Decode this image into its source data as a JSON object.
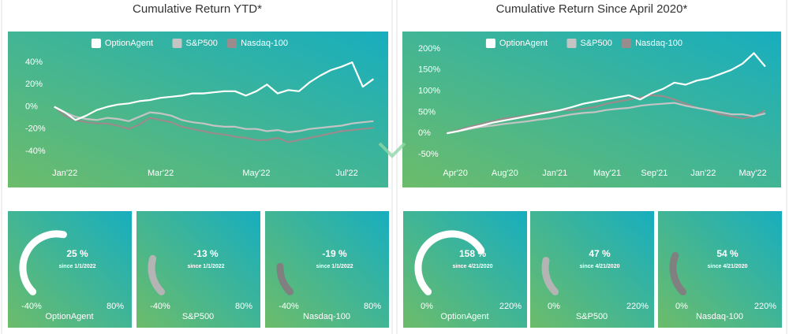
{
  "chart_data": [
    {
      "type": "line",
      "title": "Cumulative Return YTD*",
      "legend": "top",
      "grid": false,
      "x": [
        0,
        1,
        2,
        3,
        4,
        5,
        6,
        7,
        8,
        9,
        10,
        11,
        12,
        13,
        14,
        15,
        16,
        17,
        18,
        19,
        20,
        21,
        22,
        23,
        24,
        25,
        26,
        27,
        28,
        29,
        30
      ],
      "xlim": [
        -0.5,
        30.5
      ],
      "xticks": [
        {
          "value": 1,
          "label": "Jan'22"
        },
        {
          "value": 10,
          "label": "Mar'22"
        },
        {
          "value": 19,
          "label": "May'22"
        },
        {
          "value": 27.5,
          "label": "Jul'22"
        }
      ],
      "ylim": [
        -50,
        50
      ],
      "yticks": [
        {
          "value": 40,
          "label": "40%"
        },
        {
          "value": 20,
          "label": "20%"
        },
        {
          "value": 0,
          "label": "0%"
        },
        {
          "value": -20,
          "label": "-20%"
        },
        {
          "value": -40,
          "label": "-40%"
        }
      ],
      "series": [
        {
          "name": "OptionAgent",
          "color": "#ffffff",
          "values": [
            0,
            -5,
            -12,
            -8,
            -3,
            0,
            2,
            3,
            5,
            6,
            8,
            9,
            10,
            12,
            12,
            13,
            14,
            14,
            10,
            14,
            20,
            12,
            15,
            14,
            22,
            28,
            33,
            36,
            40,
            18,
            25
          ]
        },
        {
          "name": "S&P500",
          "color": "#c4c4c4",
          "values": [
            0,
            -5,
            -9,
            -11,
            -12,
            -10,
            -11,
            -13,
            -9,
            -5,
            -6,
            -8,
            -12,
            -14,
            -15,
            -17,
            -18,
            -18,
            -20,
            -20,
            -22,
            -21,
            -23,
            -22,
            -20,
            -19,
            -18,
            -17,
            -15,
            -14,
            -13
          ]
        },
        {
          "name": "Nasdaq-100",
          "color": "#9a8c8c",
          "values": [
            0,
            -8,
            -12,
            -14,
            -15,
            -15,
            -17,
            -20,
            -16,
            -10,
            -12,
            -14,
            -18,
            -20,
            -22,
            -24,
            -25,
            -27,
            -28,
            -30,
            -30,
            -28,
            -32,
            -30,
            -28,
            -26,
            -24,
            -22,
            -21,
            -20,
            -19
          ]
        }
      ]
    },
    {
      "type": "line",
      "title": "Cumulative Return Since April 2020*",
      "legend": "top",
      "grid": false,
      "x": [
        0,
        1,
        2,
        3,
        4,
        5,
        6,
        7,
        8,
        9,
        10,
        11,
        12,
        13,
        14,
        15,
        16,
        17,
        18,
        19,
        20,
        21,
        22,
        23,
        24,
        25,
        26,
        27,
        28
      ],
      "xlim": [
        -0.3,
        28.7
      ],
      "xticks": [
        {
          "value": 0.75,
          "label": "Apr'20"
        },
        {
          "value": 5.1,
          "label": "Aug'20"
        },
        {
          "value": 9.5,
          "label": "Jan'21"
        },
        {
          "value": 14.1,
          "label": "May'21"
        },
        {
          "value": 18.25,
          "label": "Sep'21"
        },
        {
          "value": 22.55,
          "label": "Jan'22"
        },
        {
          "value": 26.9,
          "label": "May'22"
        }
      ],
      "ylim": [
        -65,
        200
      ],
      "yticks": [
        {
          "value": 200,
          "label": "200%"
        },
        {
          "value": 150,
          "label": "150%"
        },
        {
          "value": 100,
          "label": "100%"
        },
        {
          "value": 50,
          "label": "50%"
        },
        {
          "value": 0,
          "label": "0%"
        },
        {
          "value": -50,
          "label": "-50%"
        }
      ],
      "series": [
        {
          "name": "OptionAgent",
          "color": "#ffffff",
          "values": [
            0,
            5,
            12,
            18,
            25,
            30,
            35,
            40,
            45,
            50,
            55,
            62,
            70,
            75,
            80,
            85,
            90,
            80,
            95,
            105,
            120,
            115,
            125,
            130,
            140,
            150,
            165,
            190,
            158
          ]
        },
        {
          "name": "S&P500",
          "color": "#c4c4c4",
          "values": [
            0,
            5,
            10,
            15,
            18,
            22,
            25,
            28,
            32,
            35,
            40,
            45,
            48,
            50,
            55,
            58,
            60,
            65,
            68,
            70,
            72,
            65,
            60,
            55,
            50,
            45,
            45,
            40,
            47
          ]
        },
        {
          "name": "Nasdaq-100",
          "color": "#9a8c8c",
          "values": [
            0,
            8,
            15,
            22,
            28,
            35,
            38,
            42,
            48,
            52,
            55,
            55,
            58,
            62,
            70,
            75,
            80,
            85,
            90,
            88,
            80,
            70,
            60,
            55,
            45,
            40,
            35,
            40,
            54
          ]
        }
      ]
    },
    {
      "type": "gauge",
      "title": "OptionAgent",
      "subtitle": "since 1/1/2022",
      "values": [
        25
      ],
      "value_labels": [
        "25 %"
      ],
      "color": "#ffffff",
      "ylim": [
        -40,
        80
      ],
      "yticks": [
        {
          "value": -40,
          "label": "-40%"
        },
        {
          "value": 80,
          "label": "80%"
        }
      ]
    },
    {
      "type": "gauge",
      "title": "S&P500",
      "subtitle": "since 1/1/2022",
      "values": [
        -13
      ],
      "value_labels": [
        "-13 %"
      ],
      "color": "#b4b4b4",
      "ylim": [
        -40,
        80
      ],
      "yticks": [
        {
          "value": -40,
          "label": "-40%"
        },
        {
          "value": 80,
          "label": "80%"
        }
      ]
    },
    {
      "type": "gauge",
      "title": "Nasdaq-100",
      "subtitle": "since 1/1/2022",
      "values": [
        -19
      ],
      "value_labels": [
        "-19 %"
      ],
      "color": "#808080",
      "ylim": [
        -40,
        80
      ],
      "yticks": [
        {
          "value": -40,
          "label": "-40%"
        },
        {
          "value": 80,
          "label": "80%"
        }
      ]
    },
    {
      "type": "gauge",
      "title": "OptionAgent",
      "subtitle": "since 4/21/2020",
      "values": [
        158
      ],
      "value_labels": [
        "158 %"
      ],
      "color": "#ffffff",
      "ylim": [
        0,
        220
      ],
      "yticks": [
        {
          "value": 0,
          "label": "0%"
        },
        {
          "value": 220,
          "label": "220%"
        }
      ]
    },
    {
      "type": "gauge",
      "title": "S&P500",
      "subtitle": "since 4/21/2020",
      "values": [
        47
      ],
      "value_labels": [
        "47 %"
      ],
      "color": "#b4b4b4",
      "ylim": [
        0,
        220
      ],
      "yticks": [
        {
          "value": 0,
          "label": "0%"
        },
        {
          "value": 220,
          "label": "220%"
        }
      ]
    },
    {
      "type": "gauge",
      "title": "Nasdaq-100",
      "subtitle": "since 4/21/2020",
      "values": [
        54
      ],
      "value_labels": [
        "54 %"
      ],
      "color": "#808080",
      "ylim": [
        0,
        220
      ],
      "yticks": [
        {
          "value": 0,
          "label": "0%"
        },
        {
          "value": 220,
          "label": "220%"
        }
      ]
    }
  ]
}
